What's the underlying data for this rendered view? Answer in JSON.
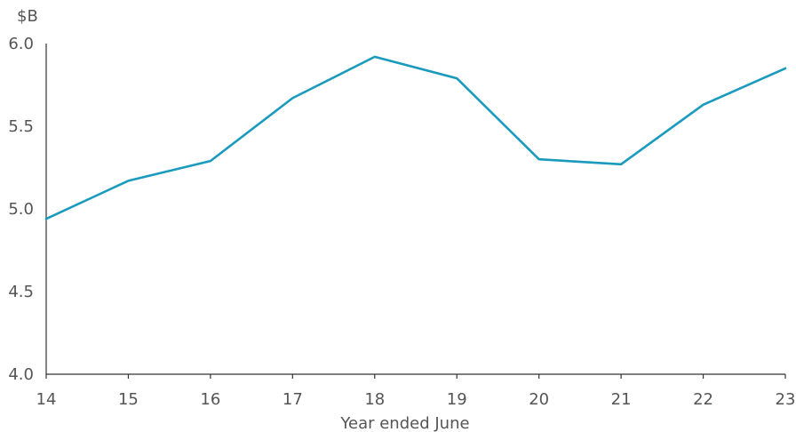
{
  "chart_data": {
    "type": "line",
    "title": "",
    "ylabel": "$B",
    "xlabel": "Year ended June",
    "x": [
      "14",
      "15",
      "16",
      "17",
      "18",
      "19",
      "20",
      "21",
      "22",
      "23"
    ],
    "series": [
      {
        "values": [
          4.94,
          5.17,
          5.29,
          5.67,
          5.92,
          5.79,
          5.3,
          5.27,
          5.63,
          5.85
        ],
        "color": "#1a9bbd"
      }
    ],
    "ylim": [
      4.0,
      6.0
    ],
    "yticks": [
      "4.0",
      "4.5",
      "5.0",
      "5.5",
      "6.0"
    ],
    "grid": false,
    "legend": "none"
  }
}
